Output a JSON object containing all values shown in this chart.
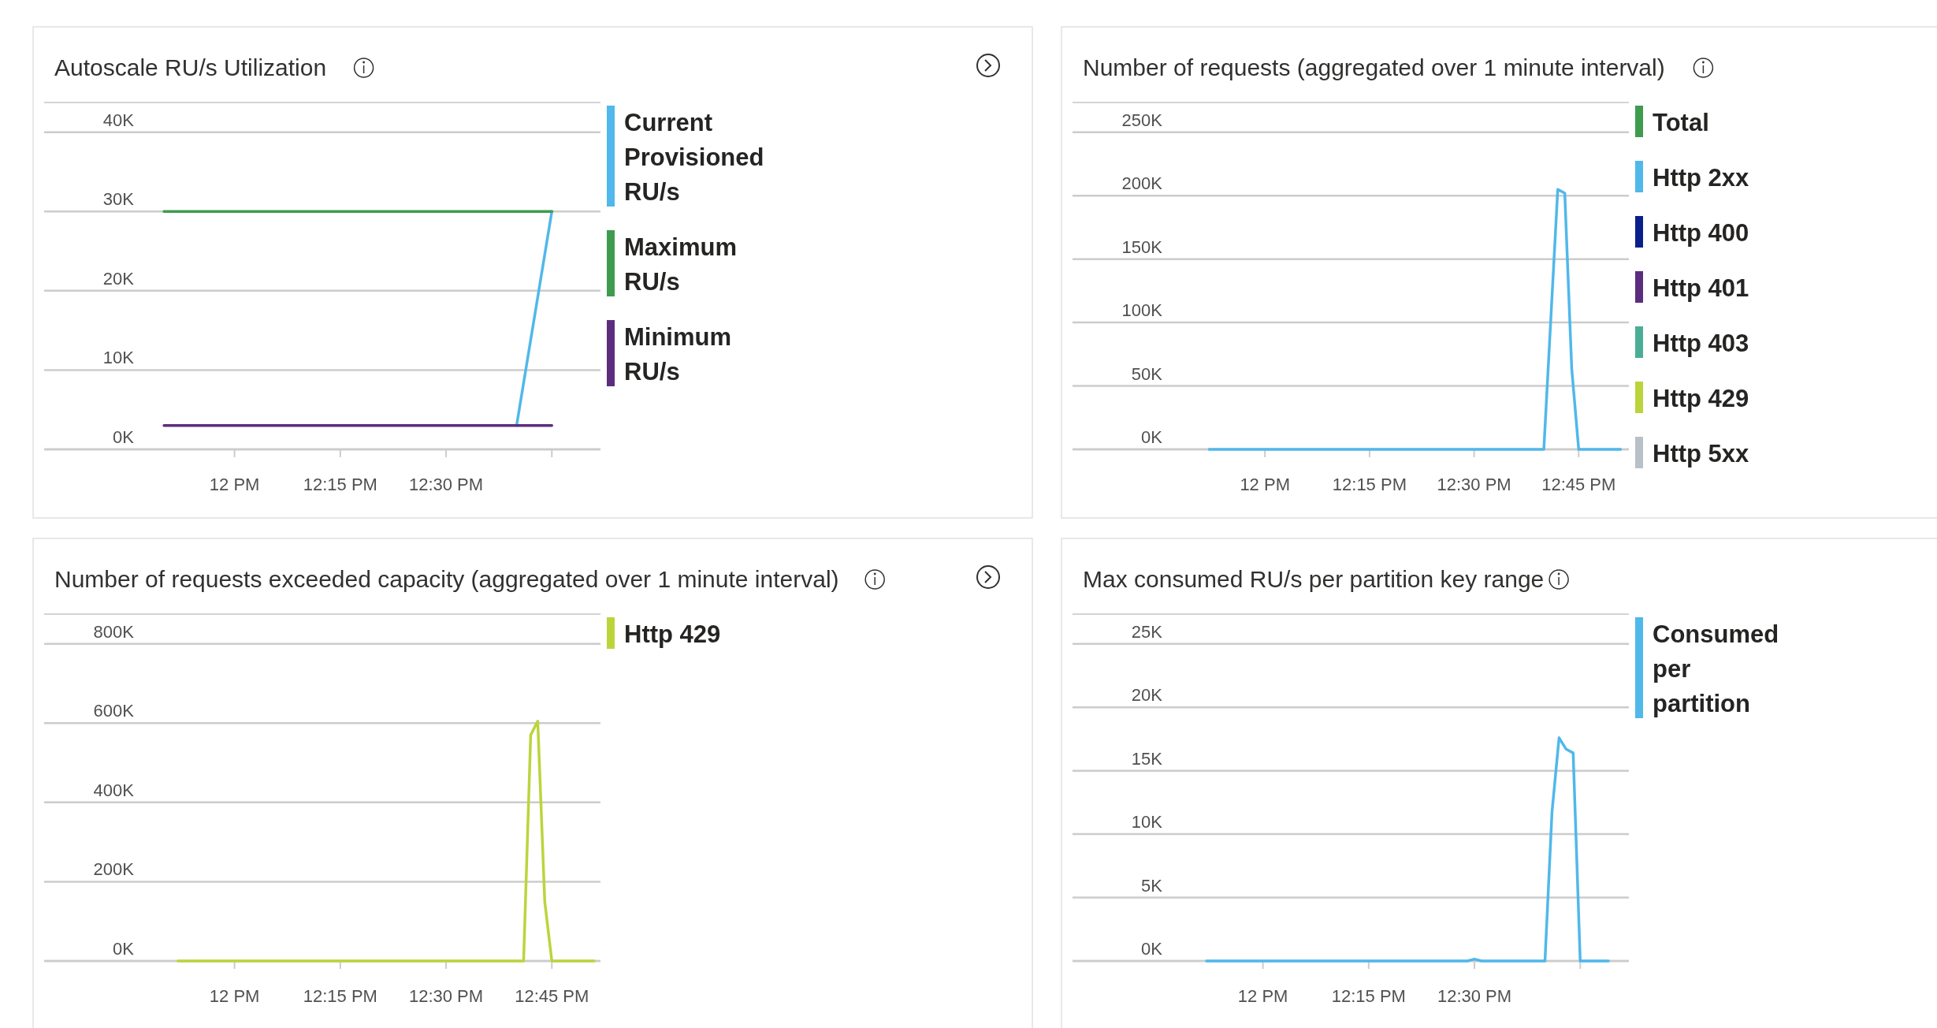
{
  "chart_data": [
    {
      "type": "line",
      "title": "Autoscale RU/s Utilization",
      "xlim": [
        11.55,
        12.865
      ],
      "xticks": [
        {
          "value": 12,
          "label": "12 PM"
        },
        {
          "value": 12.25,
          "label": "12:15 PM"
        },
        {
          "value": 12.5,
          "label": "12:30 PM"
        },
        {
          "value": 12.75,
          "label": null
        }
      ],
      "ylim": [
        0,
        43750
      ],
      "yticks": [
        {
          "value": 0,
          "label": "0K"
        },
        {
          "value": 10000,
          "label": "10K"
        },
        {
          "value": 20000,
          "label": "20K"
        },
        {
          "value": 30000,
          "label": "30K"
        },
        {
          "value": 40000,
          "label": "40K"
        }
      ],
      "grid": "y",
      "legend": "right",
      "series": [
        {
          "name": "Current Provisioned RU/s",
          "color": "#50b8ea",
          "x": [
            12.6667,
            12.75
          ],
          "values": [
            3000,
            30000
          ]
        },
        {
          "name": "Maximum RU/s",
          "color": "#3f9c4f",
          "x": [
            11.8333,
            12.75
          ],
          "values": [
            30000,
            30000
          ]
        },
        {
          "name": "Minimum RU/s",
          "color": "#5c2d7e",
          "x": [
            11.8333,
            12.75
          ],
          "values": [
            3000,
            3000
          ]
        }
      ]
    },
    {
      "type": "line",
      "title": "Number of requests (aggregated over 1 minute interval)",
      "xlim": [
        11.54,
        12.87
      ],
      "xticks": [
        {
          "value": 12,
          "label": "12 PM"
        },
        {
          "value": 12.25,
          "label": "12:15 PM"
        },
        {
          "value": 12.5,
          "label": "12:30 PM"
        },
        {
          "value": 12.75,
          "label": "12:45 PM"
        }
      ],
      "ylim": [
        0,
        273500
      ],
      "yticks": [
        {
          "value": 0,
          "label": "0K"
        },
        {
          "value": 50000,
          "label": "50K"
        },
        {
          "value": 100000,
          "label": "100K"
        },
        {
          "value": 150000,
          "label": "150K"
        },
        {
          "value": 200000,
          "label": "200K"
        },
        {
          "value": 250000,
          "label": "250K"
        }
      ],
      "grid": "y",
      "legend": "right",
      "series": [
        {
          "name": "Total",
          "color": "#3f9c4f"
        },
        {
          "name": "Http 2xx",
          "color": "#50b8ea",
          "x": [
            11.8667,
            12.6667,
            12.7,
            12.7167,
            12.7333,
            12.75,
            12.85
          ],
          "values": [
            0,
            0,
            205000,
            202000,
            64000,
            0,
            0
          ]
        },
        {
          "name": "Http 400",
          "color": "#0b1f8c"
        },
        {
          "name": "Http 401",
          "color": "#5c2d7e"
        },
        {
          "name": "Http 403",
          "color": "#4aae94"
        },
        {
          "name": "Http 429",
          "color": "#bcd43c"
        },
        {
          "name": "Http 5xx",
          "color": "#b8c0c8"
        }
      ]
    },
    {
      "type": "line",
      "title": "Number of requests exceeded capacity (aggregated over 1 minute interval)",
      "xlim": [
        11.55,
        12.865
      ],
      "xticks": [
        {
          "value": 12,
          "label": "12 PM"
        },
        {
          "value": 12.25,
          "label": "12:15 PM"
        },
        {
          "value": 12.5,
          "label": "12:30 PM"
        },
        {
          "value": 12.75,
          "label": "12:45 PM"
        }
      ],
      "ylim": [
        0,
        875000
      ],
      "yticks": [
        {
          "value": 0,
          "label": "0K"
        },
        {
          "value": 200000,
          "label": "200K"
        },
        {
          "value": 400000,
          "label": "400K"
        },
        {
          "value": 600000,
          "label": "600K"
        },
        {
          "value": 800000,
          "label": "800K"
        }
      ],
      "grid": "y",
      "legend": "right",
      "series": [
        {
          "name": "Http 429",
          "color": "#bcd43c",
          "x": [
            11.8667,
            12.6833,
            12.7,
            12.7167,
            12.7333,
            12.75,
            12.85
          ],
          "values": [
            0,
            0,
            570000,
            605000,
            149000,
            0,
            0
          ]
        }
      ]
    },
    {
      "type": "line",
      "title": "Max consumed RU/s per partition key range",
      "xlim": [
        11.55,
        12.865
      ],
      "xticks": [
        {
          "value": 12,
          "label": "12 PM"
        },
        {
          "value": 12.25,
          "label": "12:15 PM"
        },
        {
          "value": 12.5,
          "label": "12:30 PM"
        },
        {
          "value": 12.75,
          "label": null
        }
      ],
      "ylim": [
        0,
        27350
      ],
      "yticks": [
        {
          "value": 0,
          "label": "0K"
        },
        {
          "value": 5000,
          "label": "5K"
        },
        {
          "value": 10000,
          "label": "10K"
        },
        {
          "value": 15000,
          "label": "15K"
        },
        {
          "value": 20000,
          "label": "20K"
        },
        {
          "value": 25000,
          "label": "25K"
        }
      ],
      "grid": "y",
      "legend": "right",
      "series": [
        {
          "name": "Consumed per partition",
          "color": "#50b8ea",
          "x": [
            11.8667,
            12.4833,
            12.5,
            12.5167,
            12.6667,
            12.6833,
            12.7,
            12.7167,
            12.7333,
            12.75,
            12.8167
          ],
          "values": [
            0,
            0,
            150,
            0,
            0,
            11750,
            17600,
            16700,
            16400,
            0,
            0
          ]
        }
      ]
    }
  ]
}
